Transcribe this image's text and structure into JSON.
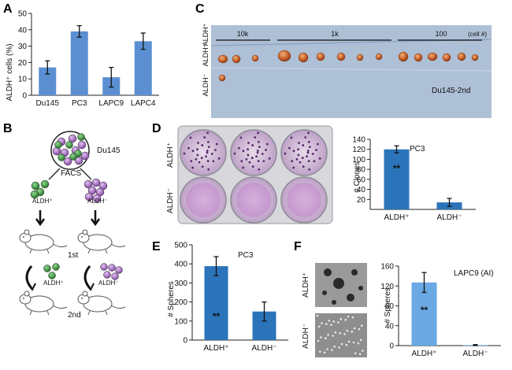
{
  "colors": {
    "bar_blue": "#5b8fd1",
    "bar_dark": "#2b74ba",
    "bar_light": "#6aa9e3",
    "mouse_green": "#3f9a3f",
    "mouse_purple": "#9b5fb8"
  },
  "panel_A": {
    "label": "A",
    "chart_data": {
      "type": "bar",
      "categories": [
        "Du145",
        "PC3",
        "LAPC9",
        "LAPC4"
      ],
      "values": [
        17,
        39,
        11,
        33
      ],
      "errors": [
        4,
        3.5,
        6,
        5
      ],
      "ylabel": "ALDH⁺ cells (%)",
      "ylim": [
        0,
        50
      ],
      "yticks": [
        0,
        10,
        20,
        30,
        40,
        50
      ]
    }
  },
  "panel_B": {
    "label": "B",
    "cell_line": "Du145",
    "facs": "FACS",
    "left_pop": "ALDH⁺",
    "right_pop": "ALDH⁻",
    "first": "1st",
    "second": "2nd",
    "left_pop_2": "ALDH⁺",
    "right_pop_2": "ALDH⁻"
  },
  "panel_C": {
    "label": "C",
    "groups": [
      "10k",
      "1k",
      "100"
    ],
    "cell_note": "(cell #)",
    "row_top": "ALDH⁺",
    "row_bottom": "ALDH⁻",
    "row_mid": "ALDH⁺",
    "caption": "Du145-2nd"
  },
  "panel_D": {
    "label": "D",
    "row_top": "ALDH⁺",
    "row_bottom": "ALDH⁻",
    "chart_data": {
      "type": "bar",
      "title": "PC3",
      "categories": [
        "ALDH⁺",
        "ALDH⁻"
      ],
      "values": [
        120,
        14
      ],
      "errors": [
        7,
        8
      ],
      "ylabel": "# Clones",
      "ylim": [
        0,
        140
      ],
      "yticks": [
        20,
        40,
        60,
        80,
        100,
        120,
        140
      ],
      "annotation": "**"
    }
  },
  "panel_E": {
    "label": "E",
    "chart_data": {
      "type": "bar",
      "title": "PC3",
      "categories": [
        "ALDH⁺",
        "ALDH⁻"
      ],
      "values": [
        388,
        150
      ],
      "errors": [
        50,
        50
      ],
      "ylabel": "# Spheres",
      "ylim": [
        0,
        500
      ],
      "yticks": [
        0,
        100,
        200,
        300,
        400,
        500
      ],
      "annotation": "**"
    }
  },
  "panel_F": {
    "label": "F",
    "row_top": "ALDH⁺",
    "row_bottom": "ALDH⁻",
    "chart_data": {
      "type": "bar",
      "title": "LAPC9 (AI)",
      "categories": [
        "ALDH⁺",
        "ALDH⁻"
      ],
      "values": [
        127,
        1
      ],
      "errors": [
        20,
        1
      ],
      "ylabel": "# Spheres",
      "ylim": [
        0,
        160
      ],
      "yticks": [
        0,
        40,
        80,
        120,
        160
      ],
      "annotation": "**"
    }
  }
}
